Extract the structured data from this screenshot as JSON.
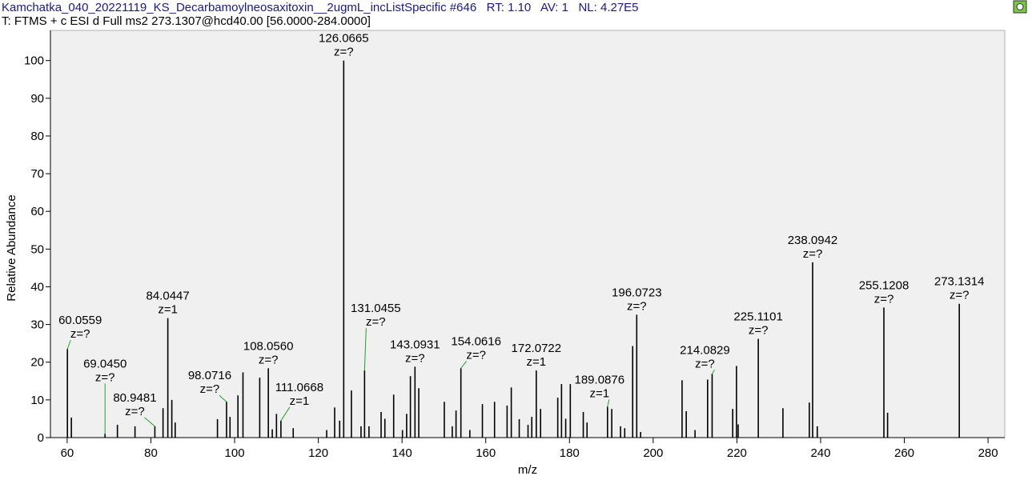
{
  "chart_data": {
    "type": "spectrum",
    "title": "Kamchatka_040_20221119_KS_Decarbamoylneosaxitoxin__2ugmL_incListSpecific #646   RT: 1.10   AV: 1   NL: 4.27E5",
    "subtitle": "T: FTMS + c ESI d Full ms2 273.1307@hcd40.00 [56.0000-284.0000]",
    "x_label": "m/z",
    "y_label": "Relative Abundance",
    "color": "#000000",
    "xlim": [
      56,
      284
    ],
    "ylim": [
      0,
      108
    ],
    "xticks": [
      60,
      80,
      100,
      120,
      140,
      160,
      180,
      200,
      220,
      240,
      260,
      280
    ],
    "yticks": [
      0,
      10,
      20,
      30,
      40,
      50,
      60,
      70,
      80,
      90,
      100
    ],
    "x": [
      61.0,
      72.0,
      76.2,
      82.9,
      85.0,
      85.8,
      95.9,
      98.9,
      100.8,
      102.0,
      106.0,
      109.0,
      110.0,
      114.0,
      122.0,
      123.9,
      125.1,
      127.9,
      130.2,
      132.1,
      135.0,
      135.9,
      138.0,
      140.1,
      141.1,
      142.0,
      144.0,
      150.1,
      152.0,
      152.9,
      156.2,
      159.2,
      162.1,
      165.1,
      166.1,
      168.0,
      170.1,
      171.0,
      173.1,
      177.2,
      178.1,
      179.1,
      180.2,
      183.3,
      184.2,
      190.1,
      192.2,
      193.2,
      195.1,
      197.0,
      206.9,
      207.9,
      210.0,
      213.0,
      219.0,
      219.9,
      220.3,
      231.0,
      237.3,
      239.2,
      256.0
    ],
    "values": [
      5.3,
      3.4,
      3.0,
      7.8,
      10.0,
      4.0,
      4.9,
      5.5,
      11.2,
      17.3,
      15.9,
      2.2,
      6.3,
      2.5,
      2.0,
      8.0,
      4.5,
      12.5,
      3.0,
      3.0,
      6.8,
      5.0,
      11.4,
      2.0,
      6.3,
      16.3,
      13.1,
      9.5,
      3.0,
      7.2,
      2.0,
      8.9,
      9.5,
      8.5,
      13.3,
      4.9,
      3.4,
      5.5,
      7.6,
      10.6,
      14.2,
      5.0,
      14.2,
      6.8,
      4.0,
      7.6,
      3.0,
      2.5,
      24.3,
      1.5,
      15.2,
      7.0,
      2.0,
      15.4,
      7.6,
      19.0,
      3.5,
      7.8,
      9.3,
      3.0,
      6.6
    ],
    "annotations": [
      {
        "x": 60.0559,
        "y": 23.5,
        "label": "60.0559",
        "z": "z=?"
      },
      {
        "x": 69.045,
        "y": 1.0,
        "label": "69.0450",
        "z": "z=?"
      },
      {
        "x": 80.9481,
        "y": 3.0,
        "label": "80.9481",
        "z": "z=?"
      },
      {
        "x": 84.0447,
        "y": 31.7,
        "label": "84.0447",
        "z": "z=1"
      },
      {
        "x": 98.0716,
        "y": 9.5,
        "label": "98.0716",
        "z": "z=?"
      },
      {
        "x": 108.056,
        "y": 18.4,
        "label": "108.0560",
        "z": "z=?"
      },
      {
        "x": 111.0668,
        "y": 4.5,
        "label": "111.0668",
        "z": "z=1"
      },
      {
        "x": 126.0665,
        "y": 100,
        "label": "126.0665",
        "z": "z=?"
      },
      {
        "x": 131.0455,
        "y": 17.8,
        "label": "131.0455",
        "z": "z=?"
      },
      {
        "x": 143.0931,
        "y": 18.8,
        "label": "143.0931",
        "z": "z=?"
      },
      {
        "x": 154.0616,
        "y": 18.4,
        "label": "154.0616",
        "z": "z=?"
      },
      {
        "x": 172.0722,
        "y": 17.8,
        "label": "172.0722",
        "z": "z=1"
      },
      {
        "x": 189.0876,
        "y": 8.2,
        "label": "189.0876",
        "z": "z=1"
      },
      {
        "x": 196.0723,
        "y": 32.6,
        "label": "196.0723",
        "z": "z=?"
      },
      {
        "x": 214.0829,
        "y": 16.9,
        "label": "214.0829",
        "z": "z=?"
      },
      {
        "x": 225.1101,
        "y": 26.2,
        "label": "225.1101",
        "z": "z=?"
      },
      {
        "x": 238.0942,
        "y": 46.5,
        "label": "238.0942",
        "z": "z=?"
      },
      {
        "x": 255.1208,
        "y": 34.5,
        "label": "255.1208",
        "z": "z=?"
      },
      {
        "x": 273.1314,
        "y": 35.5,
        "label": "273.1314",
        "z": "z=?"
      }
    ]
  }
}
